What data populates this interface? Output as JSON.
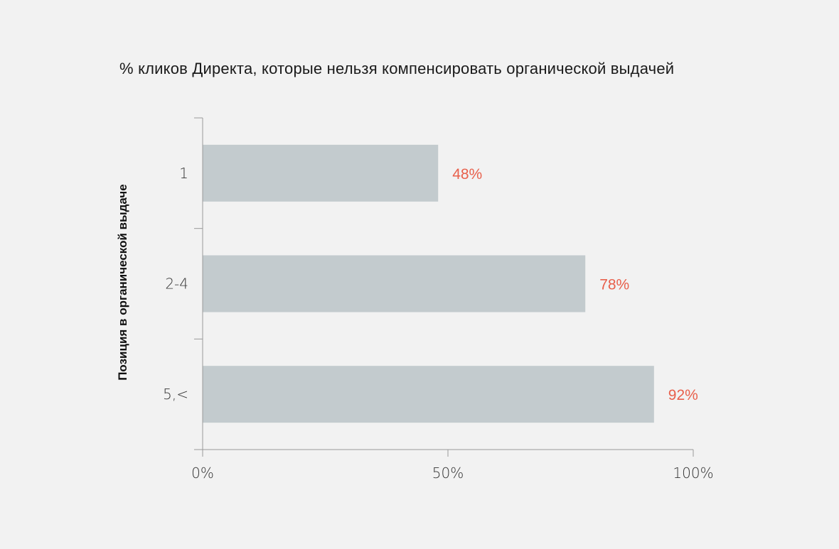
{
  "chart_data": {
    "type": "bar",
    "orientation": "horizontal",
    "title": "%  кликов Директа, которые нельзя компенсировать органической выдачей",
    "xlabel": "",
    "ylabel": "Позиция в органической выдаче",
    "categories": [
      "1",
      "2-4",
      "5,<"
    ],
    "values": [
      48,
      78,
      92
    ],
    "value_labels": [
      "48%",
      "78%",
      "92%"
    ],
    "xlim": [
      0,
      100
    ],
    "x_ticks": [
      0,
      50,
      100
    ],
    "x_tick_labels": [
      "0%",
      "50%",
      "100%"
    ],
    "grid": false,
    "legend": "none",
    "colors": {
      "bar": "#c3cbce",
      "value_label": "#e8604c",
      "axis": "#999999",
      "background": "#f2f2f2"
    }
  }
}
